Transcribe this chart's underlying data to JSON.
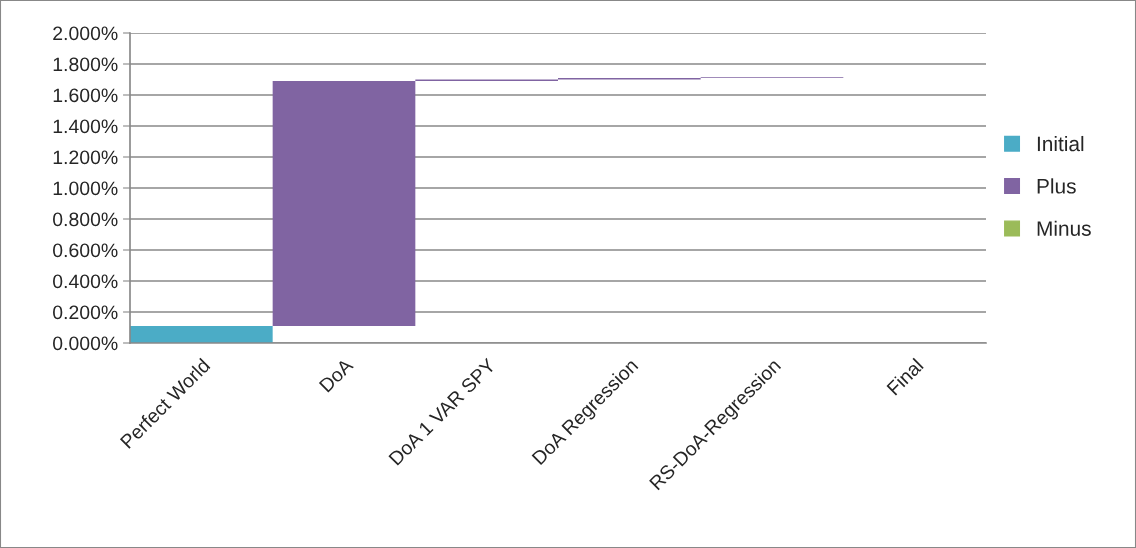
{
  "chart_data": {
    "type": "bar",
    "categories": [
      "Perfect World",
      "DoA",
      "DoA 1 VAR SPY",
      "DoA Regression",
      "RS-DoA-Regression",
      "Final"
    ],
    "series": [
      {
        "name": "Initial",
        "color": "#4bacc6",
        "values": [
          0.11,
          null,
          null,
          null,
          null,
          null
        ]
      },
      {
        "name": "Plus",
        "color": "#8064a2",
        "values": [
          null,
          1.58,
          0.01,
          0.01,
          0.005,
          null
        ],
        "base": [
          null,
          0.11,
          1.69,
          1.7,
          1.71,
          null
        ]
      },
      {
        "name": "Minus",
        "color": "#9bbb59",
        "values": [
          null,
          null,
          null,
          null,
          null,
          null
        ]
      }
    ],
    "ylim": [
      0,
      2.0
    ],
    "yticks": [
      {
        "value": 0,
        "label": "0.000%"
      },
      {
        "value": 0.2,
        "label": "0.200%"
      },
      {
        "value": 0.4,
        "label": "0.400%"
      },
      {
        "value": 0.6,
        "label": "0.600%"
      },
      {
        "value": 0.8,
        "label": "0.800%"
      },
      {
        "value": 1.0,
        "label": "1.000%"
      },
      {
        "value": 1.2,
        "label": "1.200%"
      },
      {
        "value": 1.4,
        "label": "1.400%"
      },
      {
        "value": 1.6,
        "label": "1.600%"
      },
      {
        "value": 1.8,
        "label": "1.800%"
      },
      {
        "value": 2.0,
        "label": "2.000%"
      }
    ],
    "grid": "y",
    "legend": "right"
  }
}
